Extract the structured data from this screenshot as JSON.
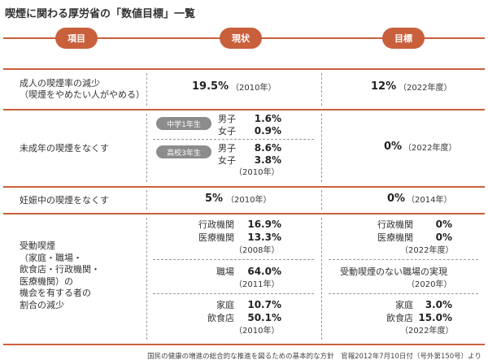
{
  "title": "喫煙に関わる厚労省の「数値目標」一覧",
  "headers": {
    "item": "項目",
    "current": "現状",
    "target": "目標"
  },
  "row1": {
    "label_line1": "成人の喫煙率の減少",
    "label_line2": "（喫煙をやめたい人がやめる）",
    "current_value": "19.5%",
    "current_year": "（2010年）",
    "target_value": "12%",
    "target_year": "（2022年度）"
  },
  "row2": {
    "label": "未成年の喫煙をなくす",
    "badge_junior": "中学1年生",
    "badge_senior": "高校3年生",
    "junior_male_label": "男子",
    "junior_male_value": "1.6%",
    "junior_female_label": "女子",
    "junior_female_value": "0.9%",
    "senior_male_label": "男子",
    "senior_male_value": "8.6%",
    "senior_female_label": "女子",
    "senior_female_value": "3.8%",
    "current_year": "（2010年）",
    "target_value": "0%",
    "target_year": "（2022年度）"
  },
  "row3": {
    "label": "妊娠中の喫煙をなくす",
    "current_value": "5%",
    "current_year": "（2010年）",
    "target_value": "0%",
    "target_year": "（2014年）"
  },
  "row4": {
    "label": "受動喫煙\n（家庭・職場・\n飲食店・行政機関・\n医療機関）の\n機会を有する者の\n割合の減少",
    "a_admin_label": "行政機関",
    "a_admin_value": "16.9%",
    "a_medical_label": "医療機関",
    "a_medical_value": "13.3%",
    "a_year": "（2008年）",
    "b_work_label": "職場",
    "b_work_value": "64.0%",
    "b_year": "（2011年）",
    "c_home_label": "家庭",
    "c_home_value": "10.7%",
    "c_food_label": "飲食店",
    "c_food_value": "50.1%",
    "c_year": "（2010年）",
    "t_admin_label": "行政機関",
    "t_admin_value": "0%",
    "t_medical_label": "医療機関",
    "t_medical_value": "0%",
    "t_a_year": "（2022年度）",
    "t_work_text": "受動喫煙のない職場の実現",
    "t_work_year": "（2020年）",
    "t_home_label": "家庭",
    "t_home_value": "3.0%",
    "t_food_label": "飲食店",
    "t_food_value": "15.0%",
    "t_c_year": "（2022年度）"
  },
  "footer": "国民の健康の増進の総合的な推進を図るための基本的な方針　官報2012年7月10日付（号外第150号）より"
}
